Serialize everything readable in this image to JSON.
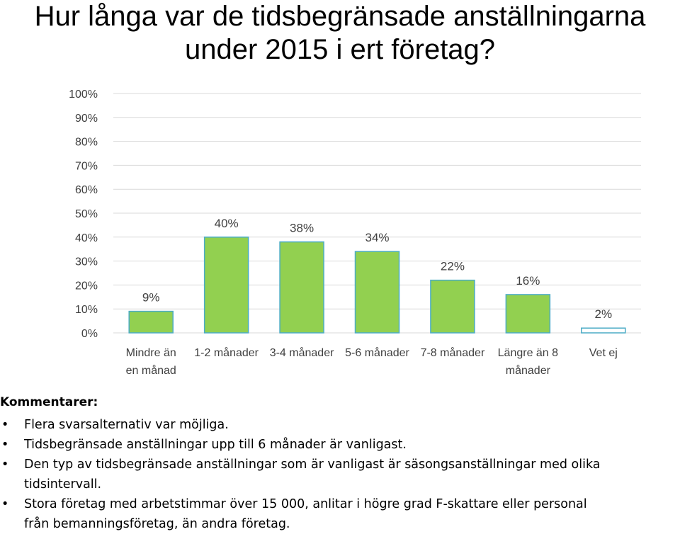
{
  "title_lines": [
    "Hur långa var de tidsbegränsade anställningarna",
    "under 2015 i ert företag?"
  ],
  "chart_data": {
    "type": "bar",
    "categories": [
      [
        "Mindre än",
        "en månad"
      ],
      [
        "1-2 månader"
      ],
      [
        "3-4 månader"
      ],
      [
        "5-6 månader"
      ],
      [
        "7-8 månader"
      ],
      [
        "Längre än 8",
        "månader"
      ],
      [
        "Vet ej"
      ]
    ],
    "values": [
      9,
      40,
      38,
      34,
      22,
      16,
      2
    ],
    "value_labels": [
      "9%",
      "40%",
      "38%",
      "34%",
      "22%",
      "16%",
      "2%"
    ],
    "ylim": [
      0,
      100
    ],
    "yticks": [
      0,
      10,
      20,
      30,
      40,
      50,
      60,
      70,
      80,
      90,
      100
    ],
    "ytick_labels": [
      "0%",
      "10%",
      "20%",
      "30%",
      "40%",
      "50%",
      "60%",
      "70%",
      "80%",
      "90%",
      "100%"
    ],
    "grid": true,
    "bar_colors": [
      "#92d050",
      "#92d050",
      "#92d050",
      "#92d050",
      "#92d050",
      "#92d050",
      "#ffffff"
    ],
    "bar_edge_color": "#4bacc6",
    "grid_color": "#d9d9d9",
    "label_color": "#404040"
  },
  "comments": {
    "heading": "Kommentarer:",
    "bullet": "•",
    "items": [
      [
        "Flera svarsalternativ var möjliga."
      ],
      [
        "Tidsbegränsade anställningar upp till 6 månader är vanligast."
      ],
      [
        "Den typ av tidsbegränsade anställningar som är vanligast är säsongsanställningar med olika",
        "tidsintervall."
      ],
      [
        "Stora företag med arbetstimmar över 15 000, anlitar i högre grad F-skattare eller personal",
        "från bemanningsföretag, än andra företag."
      ]
    ]
  }
}
